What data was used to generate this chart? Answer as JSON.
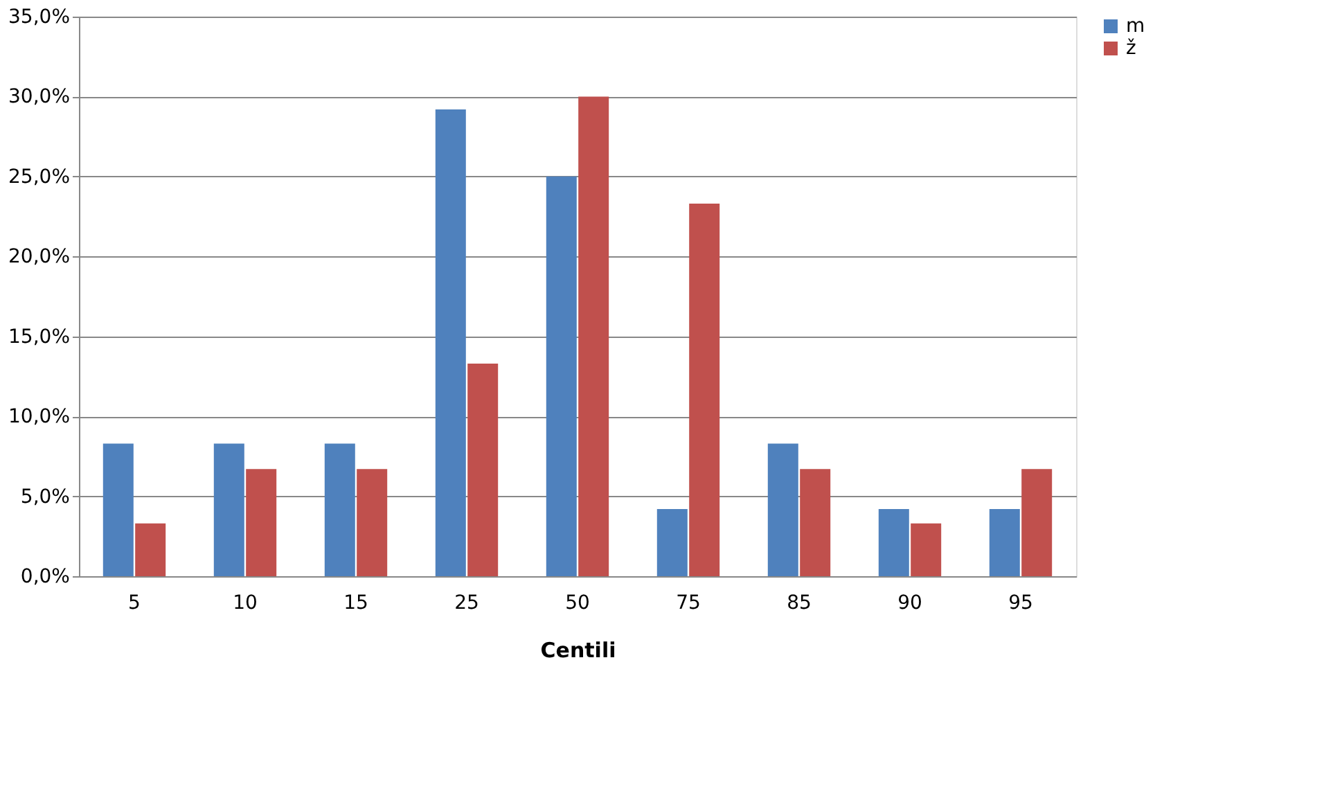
{
  "chart_data": {
    "type": "bar",
    "xlabel": "Centili",
    "categories": [
      "5",
      "10",
      "15",
      "25",
      "50",
      "75",
      "85",
      "90",
      "95"
    ],
    "series": [
      {
        "name": "m",
        "color": "#4f81bd",
        "values": [
          8.3,
          8.3,
          8.3,
          29.2,
          25.0,
          4.2,
          8.3,
          4.2,
          4.2
        ]
      },
      {
        "name": "ž",
        "color": "#c0504d",
        "values": [
          3.3,
          6.7,
          6.7,
          13.3,
          30.0,
          23.3,
          6.7,
          3.3,
          6.7
        ]
      }
    ],
    "ylim": [
      0,
      35
    ],
    "yticks": [
      {
        "value": 0,
        "label": "0,0%"
      },
      {
        "value": 5,
        "label": "5,0%"
      },
      {
        "value": 10,
        "label": "10,0%"
      },
      {
        "value": 15,
        "label": "15,0%"
      },
      {
        "value": 20,
        "label": "20,0%"
      },
      {
        "value": 25,
        "label": "25,0%"
      },
      {
        "value": 30,
        "label": "30,0%"
      },
      {
        "value": 35,
        "label": "35,0%"
      }
    ],
    "grid": "y",
    "legend": "right"
  }
}
